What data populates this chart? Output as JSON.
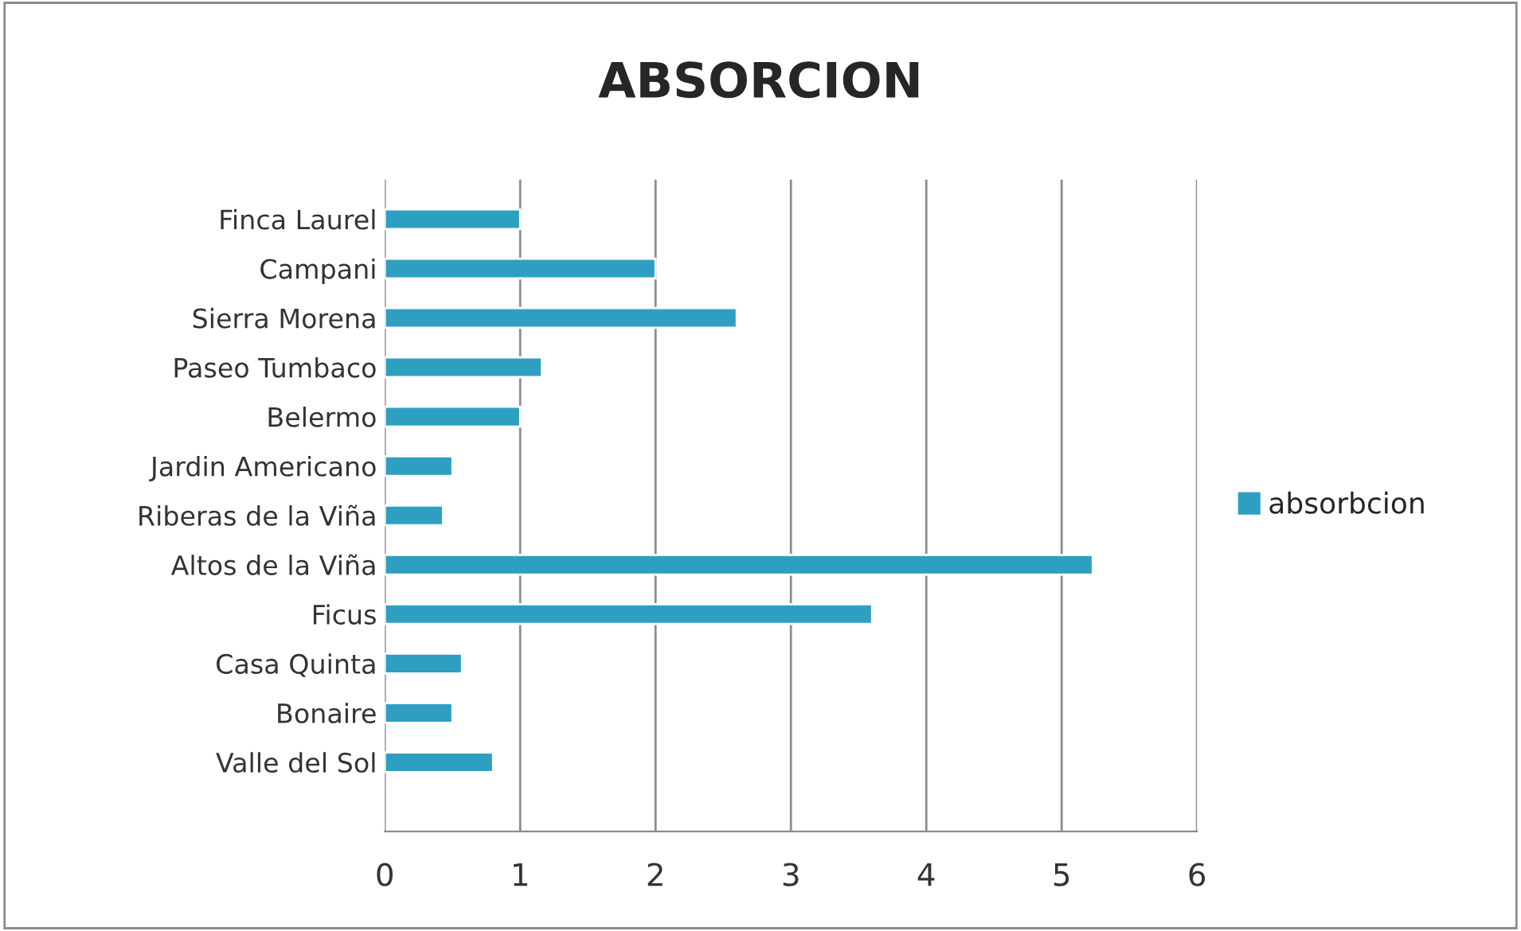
{
  "chart_data": {
    "type": "bar",
    "orientation": "horizontal",
    "title": "ABSORCION",
    "categories": [
      "Finca Laurel",
      "Campani",
      "Sierra Morena",
      "Paseo Tumbaco",
      "Belermo",
      "Jardin Americano",
      "Riberas de la Viña",
      "Altos de la Viña",
      "Ficus",
      "Casa Quinta",
      "Bonaire",
      "Valle del Sol"
    ],
    "series": [
      {
        "name": "absorbcion",
        "color": "#2f9fc1",
        "values": [
          1.0,
          2.0,
          2.6,
          1.16,
          1.0,
          0.5,
          0.43,
          5.23,
          3.6,
          0.57,
          0.5,
          0.8
        ]
      }
    ],
    "xlim": [
      0,
      6
    ],
    "xticks": [
      0,
      1,
      2,
      3,
      4,
      5,
      6
    ],
    "grid": "x",
    "legend": "right"
  }
}
